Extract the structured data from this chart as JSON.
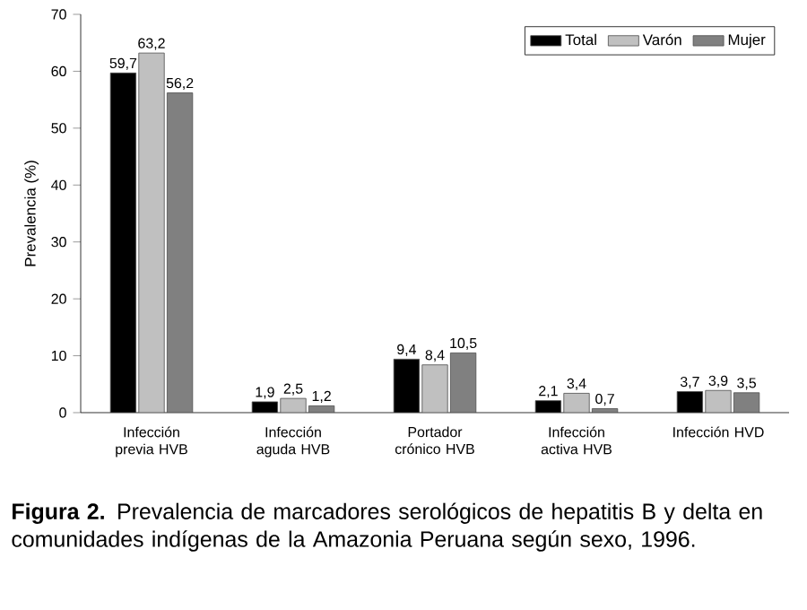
{
  "chart_data": {
    "type": "bar",
    "ylabel": "Prevalencia (%)",
    "categories": [
      "Infección previa HVB",
      "Infección aguda HVB",
      "Portador crónico HVB",
      "Infección activa HVB",
      "Infección HVD"
    ],
    "series": [
      {
        "name": "Total",
        "color": "#000000",
        "values": [
          59.7,
          1.9,
          9.4,
          2.1,
          3.7
        ],
        "value_labels": [
          "59,7",
          "1,9",
          "9,4",
          "2,1",
          "3,7"
        ]
      },
      {
        "name": "Varón",
        "color": "#c0c0c0",
        "values": [
          63.2,
          2.5,
          8.4,
          3.4,
          3.9
        ],
        "value_labels": [
          "63,2",
          "2,5",
          "8,4",
          "3,4",
          "3,9"
        ]
      },
      {
        "name": "Mujer",
        "color": "#808080",
        "values": [
          56.2,
          1.2,
          10.5,
          0.7,
          3.5
        ],
        "value_labels": [
          "56,2",
          "1,2",
          "10,5",
          "0,7",
          "3,5"
        ]
      }
    ],
    "ylim": [
      0,
      70
    ],
    "yticks": [
      0,
      10,
      20,
      30,
      40,
      50,
      60,
      70
    ],
    "legend": "top right",
    "annotations": [
      "**Figura 2.** Prevalencia de marcadores serológicos de hepatitis B y delta en comunidades indígenas de la Amazonia Peruana según sexo, 1996."
    ]
  }
}
